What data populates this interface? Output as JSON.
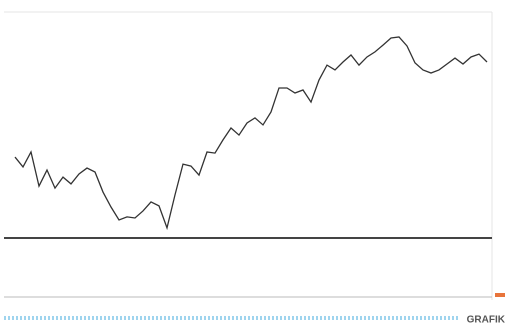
{
  "chart_data": {
    "type": "line",
    "categories": [
      null,
      null,
      null,
      null,
      null,
      null,
      null,
      null,
      null,
      null,
      null,
      null,
      null,
      null,
      null,
      null,
      null,
      null,
      null,
      null,
      null,
      null,
      null,
      null,
      null,
      null,
      null,
      null,
      null,
      null,
      null,
      null,
      null,
      null,
      null,
      null,
      null,
      null,
      null,
      null,
      null,
      null,
      null,
      null,
      null,
      null,
      null,
      null,
      null,
      null,
      null,
      null,
      null,
      null,
      null,
      null,
      null,
      null,
      null,
      null
    ],
    "values": [
      37.7,
      33.2,
      40,
      24.5,
      31.8,
      23.6,
      28.6,
      25.5,
      30,
      32.7,
      30.9,
      21.8,
      15,
      9.1,
      10.5,
      10,
      13.2,
      17.3,
      15.5,
      5.5,
      20.5,
      34.5,
      33.6,
      29.5,
      40,
      39.5,
      45.5,
      50.9,
      47.7,
      53.2,
      55.5,
      52.3,
      58.2,
      69.1,
      69.1,
      66.8,
      68.2,
      62.7,
      72.7,
      79.5,
      77.3,
      80.9,
      84.1,
      79.5,
      83.2,
      85.5,
      88.6,
      91.8,
      92.3,
      88.2,
      80.5,
      77.3,
      75.9,
      77.3,
      80,
      82.7,
      80,
      83.2,
      84.5,
      80.9
    ],
    "color": "#333333",
    "ylim": [
      0,
      100
    ],
    "brand": "GRAFIK"
  }
}
